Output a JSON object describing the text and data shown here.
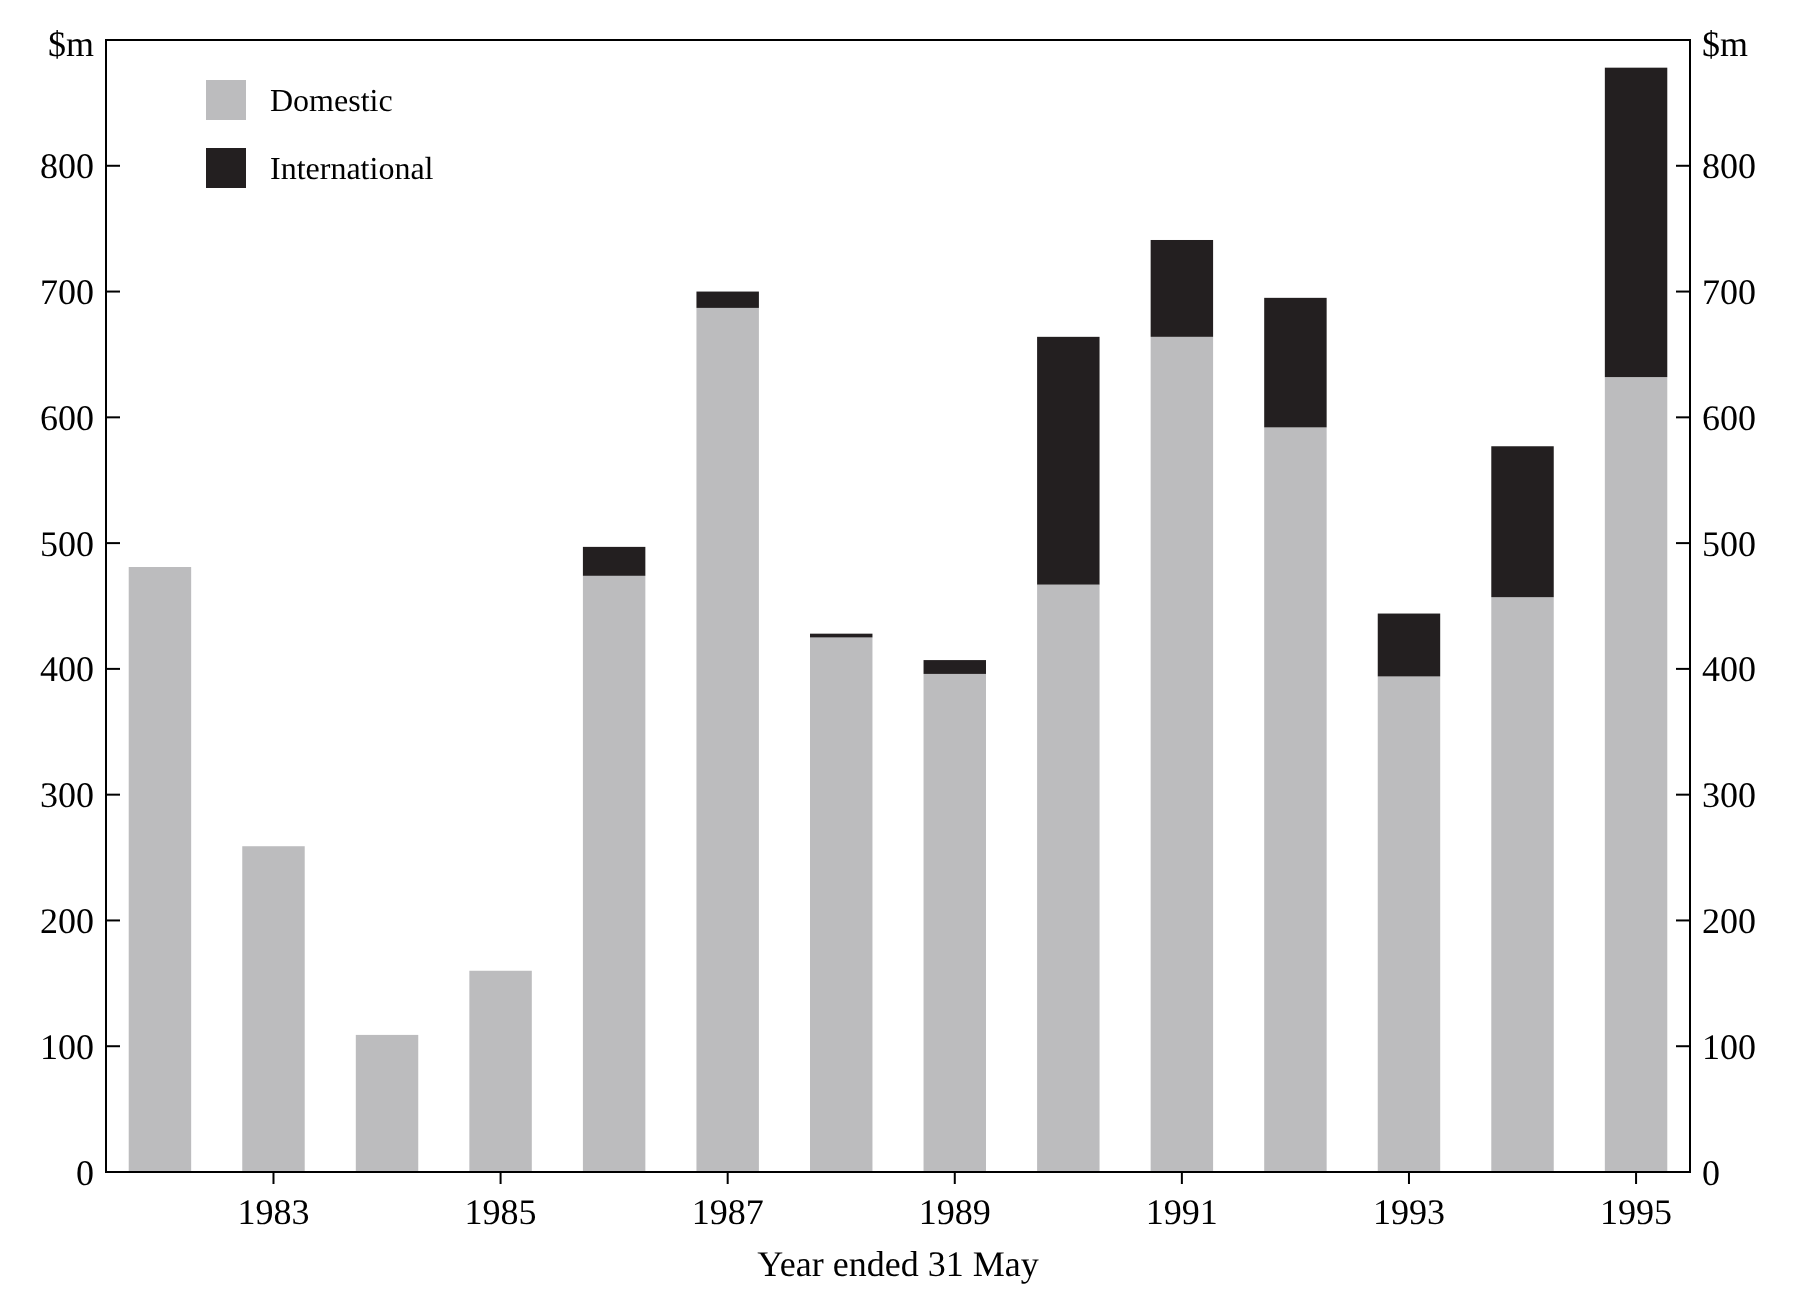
{
  "chart_data": {
    "type": "bar",
    "stacked": true,
    "xlabel": "Year ended 31 May",
    "ylabel": "$m",
    "y2label": "$m",
    "categories": [
      null,
      "1983",
      null,
      "1985",
      null,
      "1987",
      null,
      "1989",
      null,
      "1991",
      null,
      "1993",
      null,
      "1995"
    ],
    "series": [
      {
        "name": "Domestic",
        "color": "#bcbcbe",
        "values": [
          481,
          259,
          109,
          160,
          474,
          687,
          425,
          396,
          467,
          664,
          592,
          394,
          457,
          632
        ]
      },
      {
        "name": "International",
        "color": "#231f20",
        "values": [
          null,
          null,
          null,
          null,
          23,
          13,
          3,
          11,
          197,
          77,
          103,
          50,
          120,
          246
        ]
      }
    ],
    "ylim": [
      0,
      900
    ],
    "yticks": [
      0,
      100,
      200,
      300,
      400,
      500,
      600,
      700,
      800
    ],
    "y2lim": [
      0,
      900
    ],
    "y2ticks": [
      0,
      100,
      200,
      300,
      400,
      500,
      600,
      700,
      800
    ],
    "legend": "top left",
    "grid": false
  }
}
